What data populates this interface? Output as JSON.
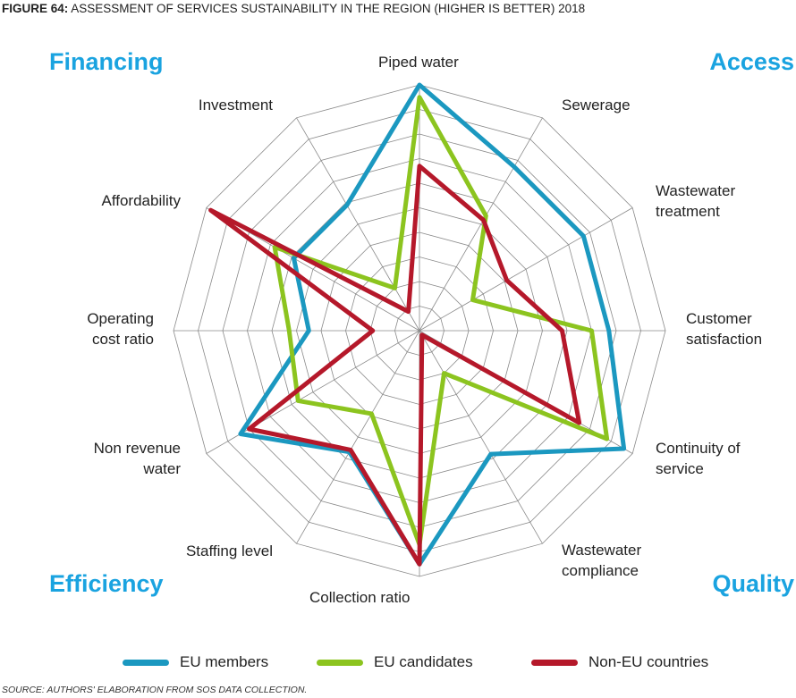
{
  "figure": {
    "title_lead": "FIGURE 64:",
    "title_text": "ASSESSMENT OF SERVICES SUSTAINABILITY IN THE REGION (HIGHER IS BETTER) 2018",
    "source": "SOURCE: AUTHORS' ELABORATION FROM SOS DATA COLLECTION."
  },
  "quadrants": {
    "financing": "Financing",
    "access": "Access",
    "efficiency": "Efficiency",
    "quality": "Quality",
    "color": "#1aa3e0"
  },
  "chart_data": {
    "type": "radar",
    "axes": [
      "Piped water",
      "Sewerage",
      "Wastewater\ntreatment",
      "Customer\nsatisfaction",
      "Continuity of\nservice",
      "Wastewater\ncompliance",
      "Collection ratio",
      "Staffing level",
      "Non revenue\nwater",
      "Operating\ncost ratio",
      "Affordability",
      "Investment"
    ],
    "range": [
      0,
      1
    ],
    "rings": 10,
    "series": [
      {
        "name": "EU members",
        "color": "#1b98c0",
        "values": [
          1.0,
          0.77,
          0.77,
          0.77,
          0.96,
          0.58,
          0.95,
          0.57,
          0.84,
          0.45,
          0.59,
          0.59
        ]
      },
      {
        "name": "EU candidates",
        "color": "#8cc41f",
        "values": [
          0.95,
          0.54,
          0.25,
          0.7,
          0.88,
          0.2,
          0.87,
          0.39,
          0.57,
          0.53,
          0.68,
          0.2
        ]
      },
      {
        "name": "Non-EU countries",
        "color": "#b5182a",
        "values": [
          0.67,
          0.52,
          0.41,
          0.58,
          0.75,
          0.02,
          0.95,
          0.56,
          0.8,
          0.19,
          0.98,
          0.09
        ]
      }
    ]
  }
}
